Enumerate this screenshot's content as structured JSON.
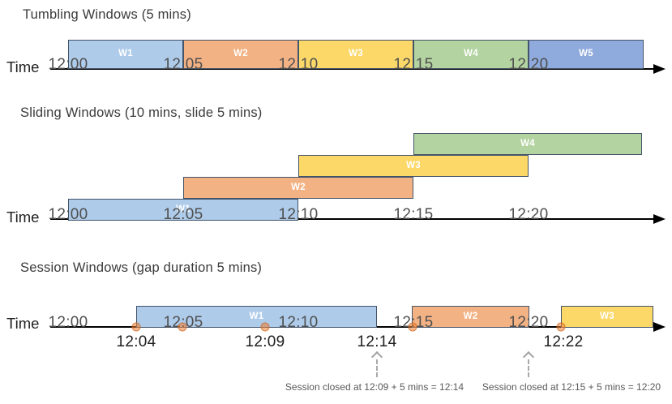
{
  "colors": {
    "blue": "#AECBEA",
    "blue_dark": "#8FAADC",
    "orange": "#F3B284",
    "yellow": "#FCD869",
    "green": "#B3D3A0",
    "box_border": "#44546A",
    "event_dot": "#ED7D31",
    "axis": "#000000",
    "annotation_text": "#595959"
  },
  "sections": [
    {
      "id": "tumbling",
      "title": "Tumbling Windows (5 mins)",
      "time_axis_label": "Time",
      "ticks": [
        "12:00",
        "12:05",
        "12:10",
        "12:15",
        "12:20"
      ],
      "windows": [
        {
          "label": "W1",
          "color": "blue"
        },
        {
          "label": "W2",
          "color": "orange"
        },
        {
          "label": "W3",
          "color": "yellow"
        },
        {
          "label": "W4",
          "color": "green"
        },
        {
          "label": "W5",
          "color": "blue_dark"
        }
      ]
    },
    {
      "id": "sliding",
      "title": "Sliding Windows (10 mins, slide 5 mins)",
      "time_axis_label": "Time",
      "ticks": [
        "12:00",
        "12:05",
        "12:10",
        "12:15",
        "12:20"
      ],
      "windows": [
        {
          "label": "W1",
          "color": "blue"
        },
        {
          "label": "W2",
          "color": "orange"
        },
        {
          "label": "W3",
          "color": "yellow"
        },
        {
          "label": "W4",
          "color": "green"
        }
      ]
    },
    {
      "id": "session",
      "title": "Session Windows (gap duration 5 mins)",
      "time_axis_label": "Time",
      "ticks": [
        "12:00",
        "12:05",
        "12:10",
        "12:15",
        "12:20"
      ],
      "windows": [
        {
          "label": "W1",
          "color": "blue"
        },
        {
          "label": "W2",
          "color": "orange"
        },
        {
          "label": "W3",
          "color": "yellow"
        }
      ],
      "event_dot_count": 5,
      "below_line_labels": [
        "12:04",
        "12:09",
        "12:14",
        "12:22"
      ],
      "annotations": [
        "Session closed at 12:09 + 5 mins = 12:14",
        "Session closed at 12:15 + 5 mins = 12:20"
      ]
    }
  ]
}
